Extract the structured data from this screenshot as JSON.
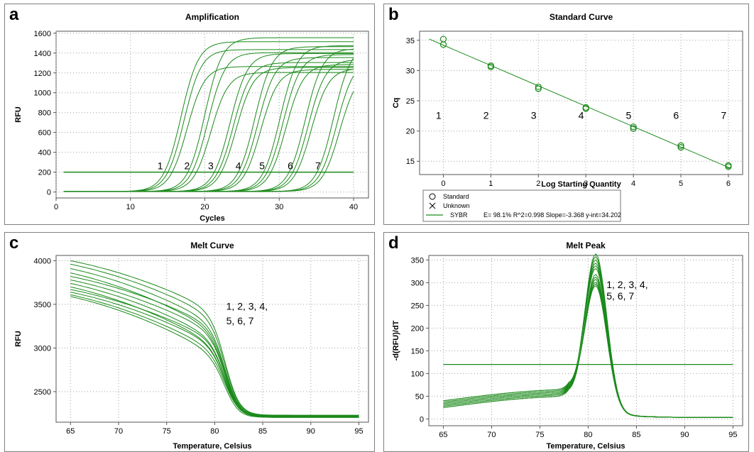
{
  "header_text": "",
  "panels": {
    "a": {
      "letter": "a"
    },
    "b": {
      "letter": "b"
    },
    "c": {
      "letter": "c"
    },
    "d": {
      "letter": "d"
    }
  },
  "colors": {
    "curve": "#1a8a1a",
    "grid": "#a0a0a0",
    "border": "#7f7f7f"
  },
  "chart_data": [
    {
      "id": "a",
      "type": "line",
      "title": "Amplification",
      "xlabel": "Cycles",
      "ylabel": "RFU",
      "xlim": [
        0,
        42
      ],
      "ylim": [
        -60,
        1620
      ],
      "xticks": [
        0,
        10,
        20,
        30,
        40
      ],
      "yticks": [
        0,
        200,
        400,
        600,
        800,
        1000,
        1200,
        1400,
        1600
      ],
      "threshold": 200,
      "x_range": [
        1,
        40
      ],
      "curves": [
        {
          "midpoint": 16.8,
          "plateau": 1510,
          "slope": 0.85
        },
        {
          "midpoint": 17.2,
          "plateau": 1430,
          "slope": 0.85
        },
        {
          "midpoint": 17.6,
          "plateau": 1260,
          "slope": 0.85
        },
        {
          "midpoint": 20.0,
          "plateau": 1550,
          "slope": 0.85
        },
        {
          "midpoint": 20.4,
          "plateau": 1400,
          "slope": 0.85
        },
        {
          "midpoint": 20.8,
          "plateau": 1200,
          "slope": 0.85
        },
        {
          "midpoint": 23.4,
          "plateau": 1390,
          "slope": 0.85
        },
        {
          "midpoint": 23.8,
          "plateau": 1300,
          "slope": 0.85
        },
        {
          "midpoint": 24.2,
          "plateau": 1250,
          "slope": 0.85
        },
        {
          "midpoint": 26.7,
          "plateau": 1460,
          "slope": 0.85
        },
        {
          "midpoint": 27.1,
          "plateau": 1350,
          "slope": 0.85
        },
        {
          "midpoint": 27.5,
          "plateau": 1230,
          "slope": 0.85
        },
        {
          "midpoint": 30.1,
          "plateau": 1470,
          "slope": 0.85
        },
        {
          "midpoint": 30.5,
          "plateau": 1380,
          "slope": 0.85
        },
        {
          "midpoint": 30.9,
          "plateau": 1280,
          "slope": 0.85
        },
        {
          "midpoint": 33.5,
          "plateau": 1440,
          "slope": 0.85
        },
        {
          "midpoint": 33.9,
          "plateau": 1330,
          "slope": 0.85
        },
        {
          "midpoint": 34.3,
          "plateau": 1240,
          "slope": 0.85
        },
        {
          "midpoint": 37.3,
          "plateau": 1480,
          "slope": 0.85
        },
        {
          "midpoint": 37.7,
          "plateau": 1330,
          "slope": 0.85
        },
        {
          "midpoint": 38.1,
          "plateau": 1210,
          "slope": 0.85
        }
      ],
      "annotations": [
        {
          "text": "1",
          "x": 14,
          "y": 230
        },
        {
          "text": "2",
          "x": 17.6,
          "y": 230
        },
        {
          "text": "3",
          "x": 20.8,
          "y": 230
        },
        {
          "text": "4",
          "x": 24.5,
          "y": 230
        },
        {
          "text": "5",
          "x": 27.7,
          "y": 230
        },
        {
          "text": "6",
          "x": 31.5,
          "y": 230
        },
        {
          "text": "7",
          "x": 35.2,
          "y": 230
        }
      ]
    },
    {
      "id": "b",
      "type": "scatter",
      "title": "Standard Curve",
      "xlabel": "Log Starting Quantity",
      "ylabel": "Cq",
      "xlim": [
        -0.5,
        6.3
      ],
      "ylim": [
        12.8,
        36.5
      ],
      "xticks": [
        0,
        1,
        2,
        3,
        4,
        5,
        6
      ],
      "yticks": [
        15,
        20,
        25,
        30,
        35
      ],
      "fit": {
        "slope": -3.368,
        "intercept": 34.202,
        "x_range": [
          -0.3,
          6.05
        ]
      },
      "points": [
        {
          "x": 0,
          "y": 35.2
        },
        {
          "x": 0,
          "y": 34.3
        },
        {
          "x": 1,
          "y": 30.8
        },
        {
          "x": 1,
          "y": 30.6
        },
        {
          "x": 2,
          "y": 27.3
        },
        {
          "x": 2,
          "y": 27.0
        },
        {
          "x": 3,
          "y": 23.9
        },
        {
          "x": 3,
          "y": 23.7
        },
        {
          "x": 4,
          "y": 20.7
        },
        {
          "x": 4,
          "y": 20.4
        },
        {
          "x": 5,
          "y": 17.6
        },
        {
          "x": 5,
          "y": 17.3
        },
        {
          "x": 6,
          "y": 14.3
        },
        {
          "x": 6,
          "y": 14.1
        }
      ],
      "annotations": [
        {
          "text": "1",
          "x": -0.1,
          "y": 22
        },
        {
          "text": "2",
          "x": 0.9,
          "y": 22
        },
        {
          "text": "3",
          "x": 1.9,
          "y": 22
        },
        {
          "text": "4",
          "x": 2.9,
          "y": 22
        },
        {
          "text": "5",
          "x": 3.9,
          "y": 22
        },
        {
          "text": "6",
          "x": 4.9,
          "y": 22
        },
        {
          "text": "7",
          "x": 5.9,
          "y": 22
        }
      ],
      "legend": [
        {
          "marker": "circle",
          "label": "Standard"
        },
        {
          "marker": "cross",
          "label": "Unknown"
        },
        {
          "marker": "line",
          "label": "SYBR",
          "stats": "E= 98.1% R^2=0.998 Slope=-3.368 y-int=34.202"
        }
      ],
      "legend_position": "bottom-left"
    },
    {
      "id": "c",
      "type": "line",
      "title": "Melt Curve",
      "xlabel": "Temperature, Celsius",
      "ylabel": "RFU",
      "xlim": [
        63.5,
        96
      ],
      "ylim": [
        2150,
        4060
      ],
      "xticks": [
        65,
        70,
        75,
        80,
        85,
        90,
        95
      ],
      "yticks": [
        2500,
        3000,
        3500,
        4000
      ],
      "start_values": [
        4000,
        3960,
        3910,
        3860,
        3820,
        3780,
        3740,
        3700,
        3670,
        3640,
        3610,
        3590
      ],
      "end_values": [
        2230,
        2225,
        2220,
        2215,
        2210,
        2205,
        2220,
        2230,
        2215,
        2210,
        2225,
        2205
      ],
      "transition_temp": 81.2,
      "annotations": [
        {
          "text": "1, 2, 3, 4,",
          "x": 81.2,
          "y": 3440
        },
        {
          "text": "5, 6, 7",
          "x": 81.2,
          "y": 3270
        }
      ]
    },
    {
      "id": "d",
      "type": "line",
      "title": "Melt Peak",
      "xlabel": "Temperature, Celsius",
      "ylabel": "-d(RFU)/dT",
      "xlim": [
        63.5,
        96
      ],
      "ylim": [
        -15,
        360
      ],
      "xticks": [
        65,
        70,
        75,
        80,
        85,
        90,
        95
      ],
      "yticks": [
        0,
        50,
        100,
        150,
        200,
        250,
        300,
        350
      ],
      "threshold": 120,
      "peak_temp": 80.8,
      "peak_values": [
        345,
        338,
        330,
        322,
        315,
        308,
        300,
        293,
        287,
        280,
        275,
        270
      ],
      "annotations": [
        {
          "text": "1, 2, 3, 4,",
          "x": 81.9,
          "y": 288
        },
        {
          "text": "5, 6, 7",
          "x": 81.9,
          "y": 263
        }
      ]
    }
  ]
}
